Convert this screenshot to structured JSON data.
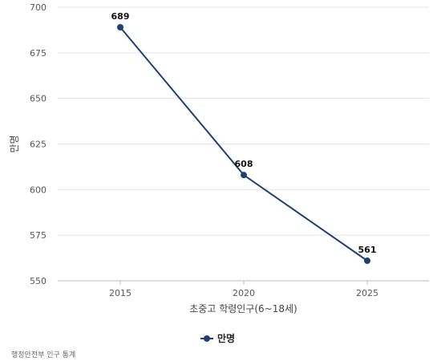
{
  "chart_data": {
    "type": "line",
    "x": [
      "2015",
      "2020",
      "2025"
    ],
    "series": [
      {
        "name": "만명",
        "values": [
          689,
          608,
          561
        ],
        "color": "#1f3e73"
      }
    ],
    "xlabel": "초중고 학령인구(6~18세)",
    "ylabel": "만명",
    "ylim": [
      550,
      700
    ],
    "yticks": [
      550,
      575,
      600,
      625,
      650,
      675,
      700
    ],
    "grid": true,
    "legend": "bottom-center"
  },
  "source": "행정안전부 인구 통계"
}
